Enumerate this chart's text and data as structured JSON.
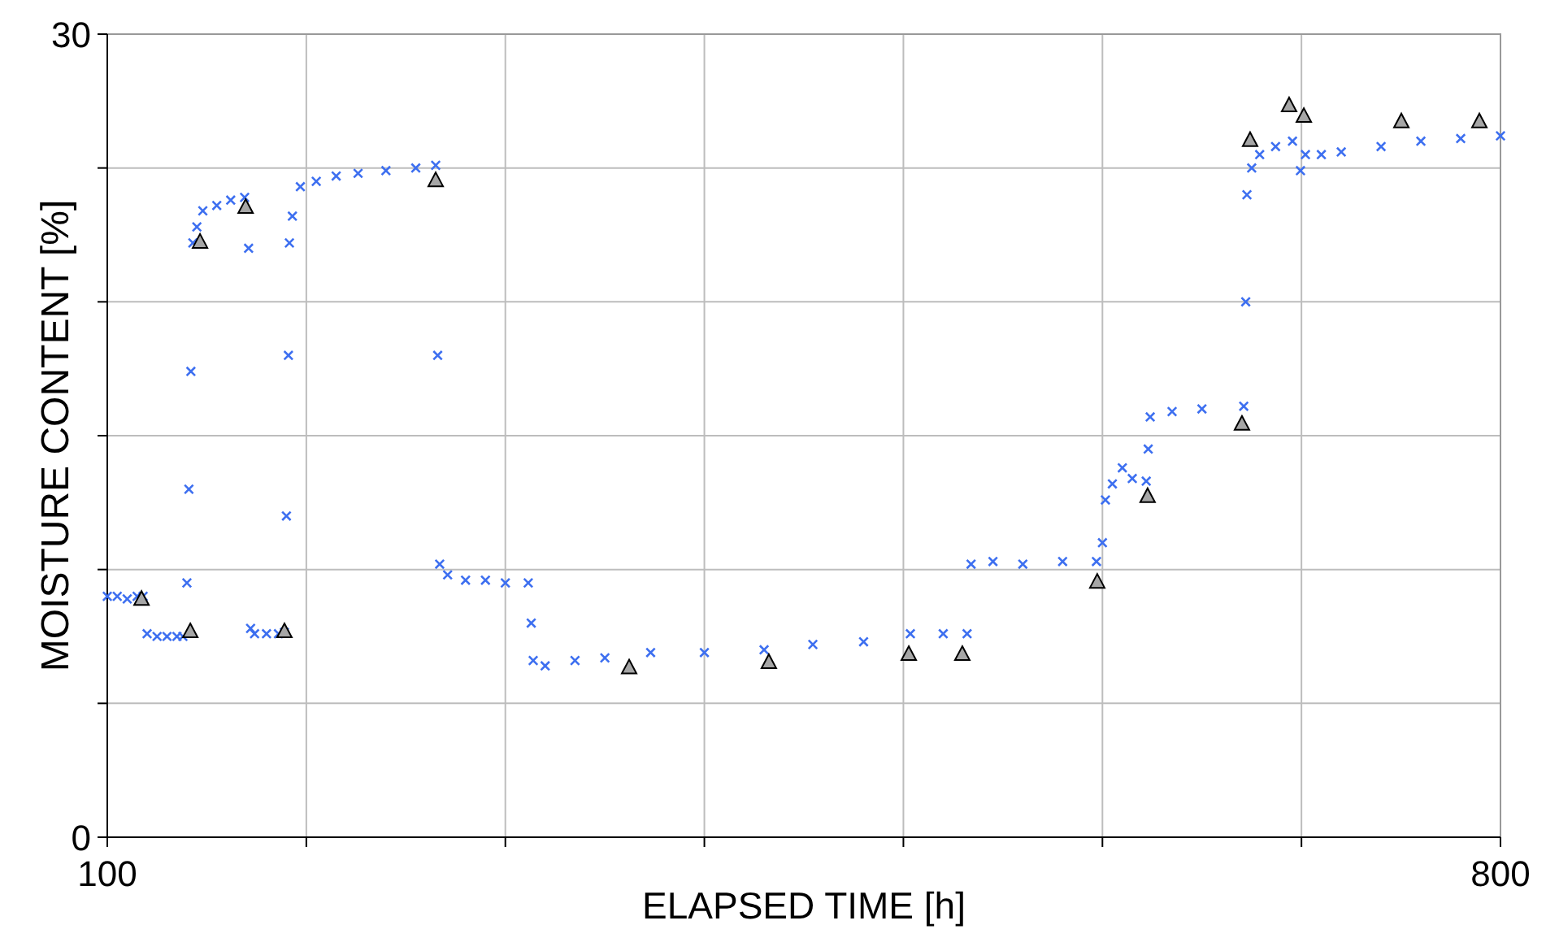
{
  "chart_data": {
    "type": "scatter",
    "xlabel": "ELAPSED TIME [h]",
    "ylabel": "MOISTURE CONTENT [%]",
    "xlim": [
      100,
      800
    ],
    "ylim": [
      0,
      30
    ],
    "xticks": [
      100,
      {
        "value": 200,
        "label": null
      },
      {
        "value": 300,
        "label": null
      },
      {
        "value": 400,
        "label": null
      },
      {
        "value": 500,
        "label": null
      },
      {
        "value": 600,
        "label": null
      },
      {
        "value": 700,
        "label": null
      },
      800
    ],
    "yticks": [
      0,
      {
        "value": 5,
        "label": null
      },
      {
        "value": 10,
        "label": null
      },
      {
        "value": 15,
        "label": null
      },
      {
        "value": 20,
        "label": null
      },
      {
        "value": 25,
        "label": null
      },
      30
    ],
    "grid": true,
    "series": [
      {
        "marker": "cross",
        "color": "#3d6ff0",
        "x": [
          100,
          105,
          110,
          115,
          118,
          120,
          125,
          130,
          135,
          138,
          140,
          141,
          142,
          143,
          145,
          148,
          155,
          162,
          169,
          171,
          172,
          174,
          180,
          186,
          189,
          190,
          191,
          191.5,
          193,
          197,
          205,
          215,
          226,
          240,
          255,
          265,
          266,
          267,
          271,
          280,
          290,
          300,
          311.5,
          313,
          314,
          320,
          335,
          350,
          373,
          400,
          430,
          454.5,
          480,
          503.5,
          520,
          532,
          534,
          545,
          560,
          580,
          597,
          600,
          601.5,
          605,
          610,
          615,
          622,
          623,
          624,
          635,
          650,
          671,
          672,
          672.6,
          675,
          679,
          687,
          695.5,
          699.5,
          702,
          710,
          720,
          740,
          760,
          780,
          800
        ],
        "values": [
          9.0,
          9.0,
          8.9,
          9.0,
          9.0,
          7.6,
          7.5,
          7.5,
          7.5,
          7.5,
          9.5,
          13,
          17.4,
          22.2,
          22.8,
          23.4,
          23.6,
          23.8,
          23.9,
          22,
          7.8,
          7.6,
          7.6,
          7.6,
          7.65,
          12,
          18,
          22.2,
          23.2,
          24.3,
          24.5,
          24.7,
          24.8,
          24.9,
          25.0,
          25.1,
          18,
          10.2,
          9.8,
          9.6,
          9.6,
          9.5,
          9.5,
          8,
          6.6,
          6.4,
          6.6,
          6.7,
          6.9,
          6.9,
          7.0,
          7.2,
          7.3,
          7.6,
          7.6,
          7.6,
          10.2,
          10.3,
          10.2,
          10.3,
          10.3,
          11,
          12.6,
          13.2,
          13.8,
          13.4,
          13.3,
          14.5,
          15.7,
          15.9,
          16.0,
          16.1,
          20,
          24.0,
          25.0,
          25.5,
          25.8,
          26.0,
          24.9,
          25.5,
          25.5,
          25.6,
          25.8,
          26.0,
          26.1,
          26.2
        ]
      },
      {
        "marker": "triangle",
        "color": "#a6a6a6",
        "x": [
          117.2,
          141.7,
          146.6,
          169.5,
          189.0,
          265.0,
          362.2,
          432.4,
          502.7,
          529.6,
          597.4,
          622.7,
          670.1,
          674.2,
          693.8,
          701.2,
          750.2,
          789.4
        ],
        "values": [
          8.86,
          7.65,
          22.2,
          23.5,
          7.65,
          24.5,
          6.3,
          6.5,
          6.8,
          6.8,
          9.5,
          12.7,
          15.4,
          26.0,
          27.3,
          26.9,
          26.7,
          26.7
        ]
      }
    ]
  }
}
